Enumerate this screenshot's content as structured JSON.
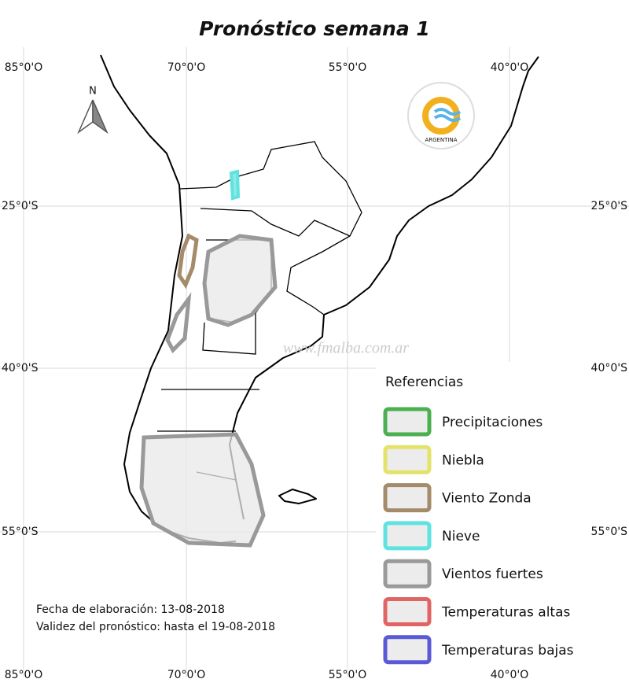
{
  "title": "Pronóstico semana 1",
  "longitude_labels_top": [
    "85°0'O",
    "70°0'O",
    "55°0'O",
    "40°0'O"
  ],
  "longitude_labels_bottom": [
    "85°0'O",
    "70°0'O",
    "55°0'O",
    "40°0'O"
  ],
  "latitude_labels_left": [
    "25°0'S",
    "40°0'S",
    "55°0'S"
  ],
  "latitude_labels_right": [
    "25°0'S",
    "40°0'S",
    "55°0'S"
  ],
  "north_label": "N",
  "logo_text": "ARGENTINA",
  "watermark": "www.fmalba.com.ar",
  "legend": {
    "title": "Referencias",
    "items": [
      {
        "label": "Precipitaciones",
        "color": "#4caf50"
      },
      {
        "label": "Niebla",
        "color": "#e3e36a"
      },
      {
        "label": "Viento Zonda",
        "color": "#a48b69"
      },
      {
        "label": "Nieve",
        "color": "#5fe3e0"
      },
      {
        "label": "Vientos fuertes",
        "color": "#9a9a9a"
      },
      {
        "label": "Temperaturas altas",
        "color": "#e06464"
      },
      {
        "label": "Temperaturas bajas",
        "color": "#5a5ad6"
      }
    ]
  },
  "footer": {
    "elaboration": "Fecha de elaboración: 13-08-2018",
    "validity": "Validez del pronóstico: hasta el 19-08-2018"
  }
}
